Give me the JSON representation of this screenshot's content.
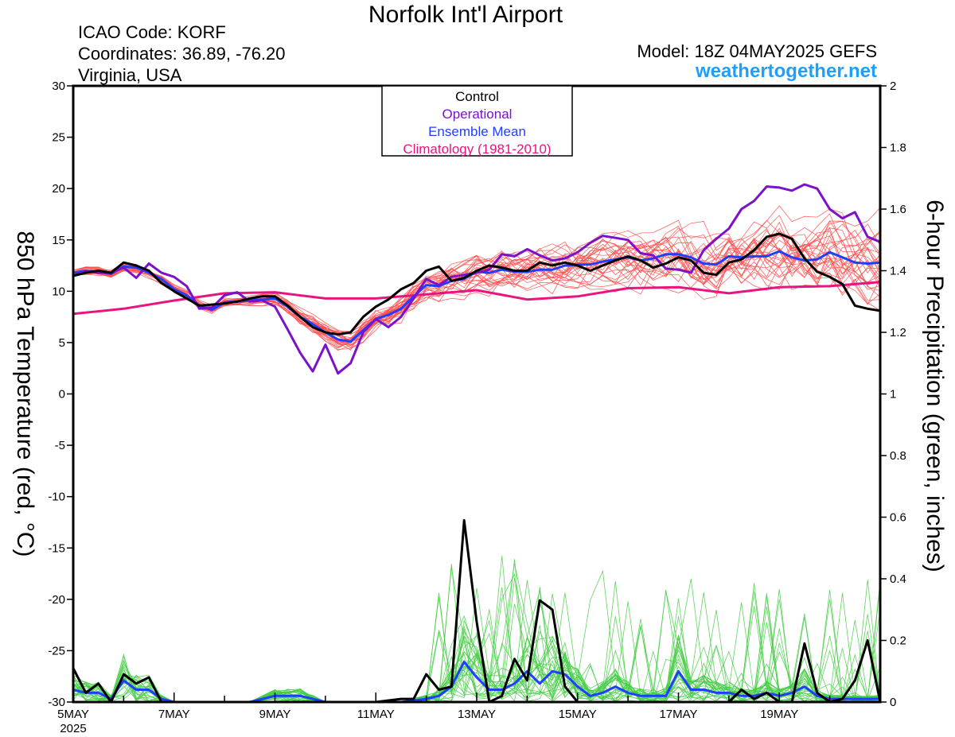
{
  "header": {
    "title": "Norfolk Int'l Airport",
    "icao": "ICAO Code: KORF",
    "coordinates": "Coordinates: 36.89, -76.20",
    "region": "Virginia, USA",
    "model": "Model: 18Z 04MAY2025 GEFS",
    "site": "weathertogether.net"
  },
  "colors": {
    "control": "#000000",
    "operational": "#7a12cc",
    "ensemble_mean": "#1f3fff",
    "climatology": "#e8147f",
    "temp_members": "#ff4c4c",
    "precip_members": "#44cc44",
    "site": "#1e9fff"
  },
  "chart_data": {
    "type": "line",
    "title": "Norfolk Int'l Airport",
    "ylabel": "850 hPa Temperature (red, °C)",
    "y2label": "6-hour Precipitation (green, inches)",
    "ylim": [
      -30,
      30
    ],
    "y2lim": [
      0,
      2
    ],
    "yticks": [
      "30",
      "25",
      "20",
      "15",
      "10",
      "5",
      "0",
      "-5",
      "-10",
      "-15",
      "-20",
      "-25",
      "-30"
    ],
    "y2ticks": [
      "2",
      "1.8",
      "1.6",
      "1.4",
      "1.2",
      "1",
      "0.8",
      "0.6",
      "0.4",
      "0.2",
      "0"
    ],
    "xlim_days": [
      5.0,
      21.0
    ],
    "xticks": [
      {
        "day": 5,
        "label": "5MAY",
        "sub": "2025"
      },
      {
        "day": 7,
        "label": "7MAY",
        "sub": ""
      },
      {
        "day": 9,
        "label": "9MAY",
        "sub": ""
      },
      {
        "day": 11,
        "label": "11MAY",
        "sub": ""
      },
      {
        "day": 13,
        "label": "13MAY",
        "sub": ""
      },
      {
        "day": 15,
        "label": "15MAY",
        "sub": ""
      },
      {
        "day": 17,
        "label": "17MAY",
        "sub": ""
      },
      {
        "day": 19,
        "label": "19MAY",
        "sub": ""
      }
    ],
    "legend": {
      "position": "top-center",
      "entries": [
        {
          "label": "Control",
          "color": "#000000"
        },
        {
          "label": "Operational",
          "color": "#7a12cc"
        },
        {
          "label": "Ensemble Mean",
          "color": "#1f3fff"
        },
        {
          "label": "Climatology (1981-2010)",
          "color": "#e8147f"
        }
      ]
    },
    "series": [
      {
        "name": "Control",
        "axis": "temp",
        "color": "#000000",
        "x": [
          5,
          5.25,
          5.5,
          5.75,
          6,
          6.25,
          6.5,
          6.75,
          7,
          7.25,
          7.5,
          7.75,
          8,
          8.25,
          8.5,
          8.75,
          9,
          9.25,
          9.5,
          9.75,
          10,
          10.25,
          10.5,
          10.75,
          11,
          11.25,
          11.5,
          11.75,
          12,
          12.25,
          12.5,
          12.75,
          13,
          13.25,
          13.5,
          13.75,
          14,
          14.25,
          14.5,
          14.75,
          15,
          15.25,
          15.5,
          15.75,
          16,
          16.25,
          16.5,
          16.75,
          17,
          17.25,
          17.5,
          17.75,
          18,
          18.25,
          18.5,
          18.75,
          19,
          19.25,
          19.5,
          19.75,
          20,
          20.25,
          20.5,
          20.75,
          21
        ],
        "y": [
          11.5,
          11.8,
          12,
          11.8,
          12.8,
          12.5,
          12,
          10.8,
          10,
          9.3,
          8.6,
          8.7,
          8.8,
          9,
          9.3,
          9.5,
          9.5,
          8.6,
          7.5,
          6.5,
          6,
          5.8,
          6,
          7.5,
          8.5,
          9.2,
          10.2,
          10.8,
          12,
          12.4,
          11,
          11.3,
          12,
          12.5,
          12.3,
          12,
          12,
          12.8,
          12.5,
          12.8,
          12.5,
          12,
          12.5,
          13,
          13.4,
          13,
          12.3,
          12.7,
          13.3,
          13,
          11.8,
          11.6,
          12.8,
          13.1,
          14,
          15.3,
          15.6,
          15.1,
          13.2,
          11.9,
          11.4,
          10.7,
          8.6,
          8.3,
          8.1
        ]
      },
      {
        "name": "Operational",
        "axis": "temp",
        "color": "#7a12cc",
        "x": [
          5,
          5.25,
          5.5,
          5.75,
          6,
          6.25,
          6.5,
          6.75,
          7,
          7.25,
          7.5,
          7.75,
          8,
          8.25,
          8.5,
          8.75,
          9,
          9.25,
          9.5,
          9.75,
          10,
          10.25,
          10.5,
          10.75,
          11,
          11.25,
          11.5,
          11.75,
          12,
          12.25,
          12.5,
          12.75,
          13,
          13.25,
          13.5,
          13.75,
          14,
          14.25,
          14.5,
          14.75,
          15,
          15.25,
          15.5,
          15.75,
          16,
          16.25,
          16.5,
          16.75,
          17,
          17.25,
          17.5,
          17.75,
          18,
          18.25,
          18.5,
          18.75,
          19,
          19.25,
          19.5,
          19.75,
          20,
          20.25,
          20.5,
          20.75,
          21
        ],
        "y": [
          11.5,
          12,
          11.8,
          11.8,
          12.3,
          11.3,
          12.7,
          11.8,
          11.4,
          10.5,
          8.3,
          8.4,
          9.6,
          9.9,
          9,
          9.1,
          8.5,
          6.3,
          4,
          2.2,
          4.8,
          2,
          3,
          6,
          7.3,
          6.5,
          7.5,
          9.3,
          11.2,
          10.6,
          11.4,
          11.6,
          11.8,
          12.1,
          13.6,
          13.4,
          14.1,
          13.5,
          13,
          13.2,
          13.8,
          14.7,
          15.4,
          15.2,
          15,
          13.7,
          13.5,
          12.2,
          12.1,
          11.8,
          14,
          15.1,
          16.1,
          18,
          18.8,
          20.2,
          20.1,
          19.8,
          20.4,
          20,
          18,
          17.1,
          17.7,
          15.3,
          14.8
        ]
      },
      {
        "name": "Ensemble Mean",
        "axis": "temp",
        "color": "#1f3fff",
        "x": [
          5,
          5.25,
          5.5,
          5.75,
          6,
          6.25,
          6.5,
          6.75,
          7,
          7.25,
          7.5,
          7.75,
          8,
          8.25,
          8.5,
          8.75,
          9,
          9.25,
          9.5,
          9.75,
          10,
          10.25,
          10.5,
          10.75,
          11,
          11.25,
          11.5,
          11.75,
          12,
          12.25,
          12.5,
          12.75,
          13,
          13.25,
          13.5,
          13.75,
          14,
          14.25,
          14.5,
          14.75,
          15,
          15.25,
          15.5,
          15.75,
          16,
          16.25,
          16.5,
          16.75,
          17,
          17.25,
          17.5,
          17.75,
          18,
          18.25,
          18.5,
          18.75,
          19,
          19.25,
          19.5,
          19.75,
          20,
          20.25,
          20.5,
          20.75,
          21
        ],
        "y": [
          11.8,
          12,
          11.9,
          11.7,
          12.4,
          12.3,
          11.8,
          11.2,
          10.2,
          9.6,
          8.6,
          8.2,
          8.9,
          9,
          9.1,
          9.2,
          9.3,
          8.5,
          7.5,
          6.8,
          6,
          5.3,
          5.1,
          6.2,
          7.3,
          7.7,
          8.3,
          9.5,
          10.6,
          10.5,
          11,
          11.2,
          11.9,
          11.8,
          12.1,
          11.9,
          11.9,
          12.1,
          12.1,
          12.5,
          12.6,
          12.6,
          12.9,
          13.1,
          13.3,
          13,
          13.2,
          13.6,
          13.6,
          13.3,
          12.7,
          12.6,
          13.4,
          13.3,
          13.4,
          13.4,
          13.9,
          13.3,
          13,
          13.1,
          13.8,
          13.3,
          12.8,
          12.7,
          12.8
        ]
      },
      {
        "name": "Climatology (1981-2010)",
        "axis": "temp",
        "color": "#e8147f",
        "x": [
          5,
          6,
          7,
          8,
          9,
          10,
          11,
          12,
          13,
          14,
          15,
          16,
          17,
          18,
          19,
          20,
          21
        ],
        "y": [
          7.8,
          8.3,
          9.1,
          9.8,
          9.9,
          9.3,
          9.3,
          9.7,
          10.1,
          9.2,
          9.5,
          10.3,
          10.4,
          9.8,
          10.4,
          10.5,
          10.9
        ]
      },
      {
        "name": "Control",
        "axis": "precip",
        "color": "#000000",
        "x": [
          5,
          5.25,
          5.5,
          5.75,
          6,
          6.25,
          6.5,
          6.75,
          7,
          7.25,
          7.5,
          8,
          8.5,
          9,
          9.5,
          10,
          10.5,
          11,
          11.5,
          11.75,
          12,
          12.25,
          12.5,
          12.75,
          13,
          13.25,
          13.5,
          13.75,
          14,
          14.25,
          14.5,
          14.75,
          15,
          15.25,
          15.5,
          16,
          16.5,
          17,
          17.5,
          18,
          18.25,
          18.5,
          18.75,
          19,
          19.25,
          19.5,
          19.75,
          20,
          20.25,
          20.5,
          20.75,
          21
        ],
        "y": [
          0.11,
          0.03,
          0.06,
          0,
          0.09,
          0.06,
          0.08,
          0,
          0,
          0,
          0,
          0,
          0,
          0,
          0,
          0,
          0,
          0,
          0.01,
          0.01,
          0.09,
          0.04,
          0.05,
          0.59,
          0.26,
          0,
          0.02,
          0.14,
          0.07,
          0.33,
          0.3,
          0.05,
          0,
          0,
          0,
          0,
          0,
          0,
          0,
          0,
          0.04,
          0.01,
          0.03,
          0,
          0,
          0.19,
          0.03,
          0,
          0.01,
          0.07,
          0.2,
          0
        ]
      },
      {
        "name": "Ensemble Mean",
        "axis": "precip",
        "color": "#1f3fff",
        "x": [
          5,
          5.25,
          5.5,
          5.75,
          6,
          6.25,
          6.5,
          6.75,
          7,
          7.5,
          8,
          8.5,
          9,
          9.25,
          9.5,
          9.75,
          10,
          10.5,
          11,
          11.5,
          12,
          12.25,
          12.5,
          12.75,
          13,
          13.25,
          13.5,
          13.75,
          14,
          14.25,
          14.5,
          14.75,
          15,
          15.25,
          15.5,
          15.75,
          16,
          16.25,
          16.5,
          16.75,
          17,
          17.25,
          17.5,
          17.75,
          18,
          18.25,
          18.5,
          18.75,
          19,
          19.25,
          19.5,
          19.75,
          20,
          20.25,
          20.5,
          20.75,
          21
        ],
        "y": [
          0.04,
          0.03,
          0.03,
          0.01,
          0.07,
          0.04,
          0.04,
          0.01,
          0,
          0,
          0,
          0,
          0.02,
          0.02,
          0.02,
          0.01,
          0,
          0,
          0,
          0,
          0.01,
          0.02,
          0.05,
          0.13,
          0.08,
          0.04,
          0.04,
          0.06,
          0.1,
          0.06,
          0.1,
          0.09,
          0.05,
          0.02,
          0.03,
          0.05,
          0.03,
          0.02,
          0.02,
          0.02,
          0.1,
          0.04,
          0.04,
          0.03,
          0.03,
          0.02,
          0.02,
          0.03,
          0.02,
          0.03,
          0.05,
          0.02,
          0.01,
          0.01,
          0.01,
          0.01,
          0.01
        ]
      }
    ],
    "temp_member_count": 30,
    "precip_member_count": 30
  }
}
